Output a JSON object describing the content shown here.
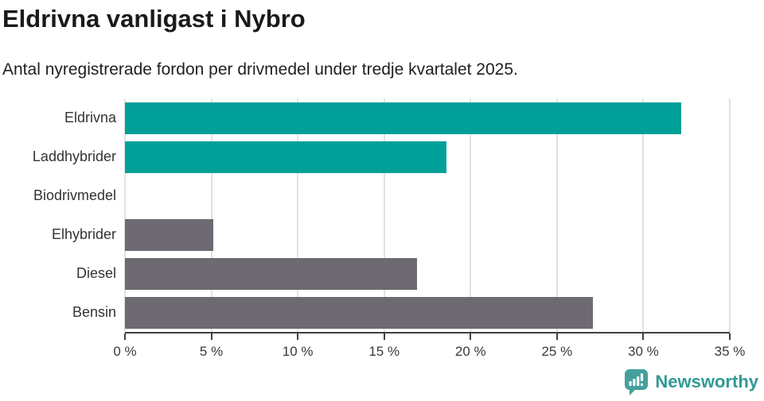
{
  "header": {
    "title": "Eldrivna vanligast i Nybro",
    "subtitle": "Antal nyregistrerade fordon per drivmedel under tredje kvartalet 2025."
  },
  "chart_data": {
    "type": "bar",
    "orientation": "horizontal",
    "title": "Eldrivna vanligast i Nybro",
    "subtitle": "Antal nyregistrerade fordon per drivmedel under tredje kvartalet 2025.",
    "categories": [
      "Eldrivna",
      "Laddhybrider",
      "Biodrivmedel",
      "Elhybrider",
      "Diesel",
      "Bensin"
    ],
    "values": [
      32.2,
      18.6,
      0,
      5.1,
      16.9,
      27.1
    ],
    "unit": "%",
    "xlim": [
      0,
      35
    ],
    "x_ticks": [
      0,
      5,
      10,
      15,
      20,
      25,
      30,
      35
    ],
    "x_tick_labels": [
      "0 %",
      "5 %",
      "10 %",
      "15 %",
      "20 %",
      "25 %",
      "30 %",
      "35 %"
    ],
    "bar_colors": [
      "#00a099",
      "#00a099",
      "#6d6a71",
      "#6d6a71",
      "#6d6a71",
      "#6d6a71"
    ],
    "highlight_color": "#00a099",
    "default_color": "#6d6a71",
    "grid": true,
    "gridline_color": "#e2e2e2",
    "axis_color": "#3f3f3f"
  },
  "footer": {
    "brand": "Newsworthy",
    "brand_text_color": "#2f9a94",
    "brand_icon_color": "#45a09b",
    "brand_icon": "speech-bubble-bar-chart-icon"
  }
}
